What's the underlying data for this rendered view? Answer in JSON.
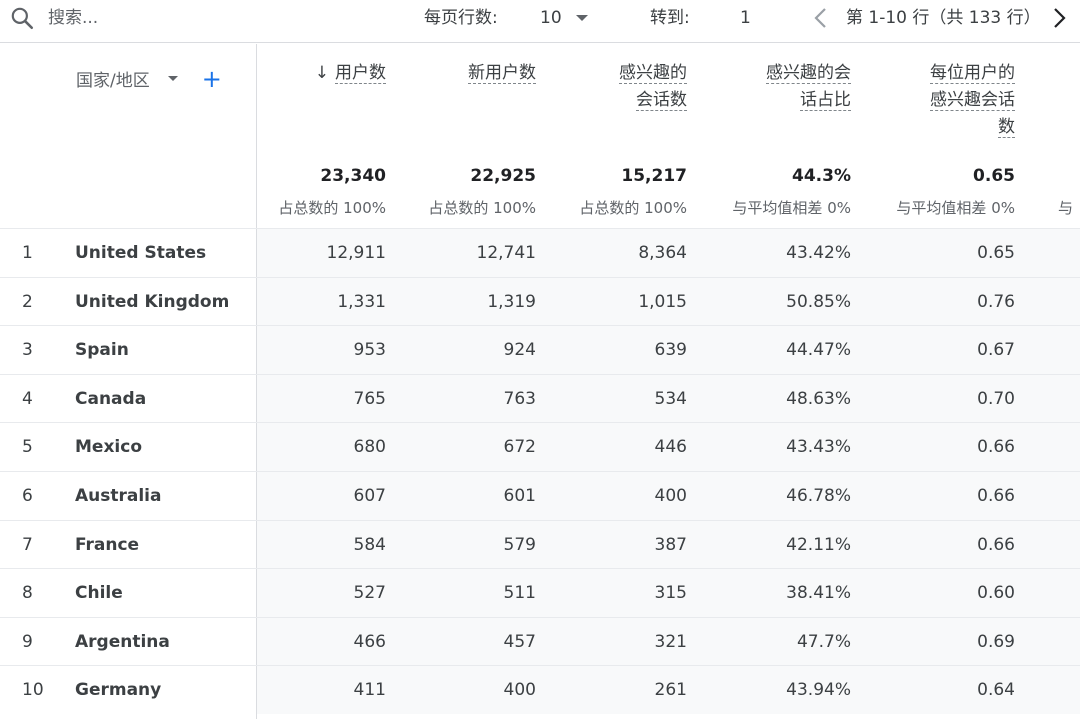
{
  "toolbar": {
    "search_placeholder": "搜索...",
    "rows_per_page_label": "每页行数:",
    "rows_per_page_value": "10",
    "goto_label": "转到:",
    "goto_value": "1",
    "range_text": "第 1-10 行（共 133 行）"
  },
  "table": {
    "dimension_header": "国家/地区",
    "columns": [
      {
        "label_lines": [
          "用户数"
        ],
        "sorted": true,
        "total": "23,340",
        "sub": "占总数的 100%"
      },
      {
        "label_lines": [
          "新用户数"
        ],
        "total": "22,925",
        "sub": "占总数的 100%"
      },
      {
        "label_lines": [
          "感兴趣的",
          "会话数"
        ],
        "total": "15,217",
        "sub": "占总数的 100%"
      },
      {
        "label_lines": [
          "感兴趣的会",
          "话占比"
        ],
        "total": "44.3%",
        "sub": "与平均值相差 0%"
      },
      {
        "label_lines": [
          "每位用户的",
          "感兴趣会话",
          "数"
        ],
        "total": "0.65",
        "sub": "与平均值相差 0%"
      }
    ],
    "next_column_sub_cutoff": "与",
    "rows": [
      {
        "idx": "1",
        "country": "United States",
        "v": [
          "12,911",
          "12,741",
          "8,364",
          "43.42%",
          "0.65"
        ]
      },
      {
        "idx": "2",
        "country": "United Kingdom",
        "v": [
          "1,331",
          "1,319",
          "1,015",
          "50.85%",
          "0.76"
        ]
      },
      {
        "idx": "3",
        "country": "Spain",
        "v": [
          "953",
          "924",
          "639",
          "44.47%",
          "0.67"
        ]
      },
      {
        "idx": "4",
        "country": "Canada",
        "v": [
          "765",
          "763",
          "534",
          "48.63%",
          "0.70"
        ]
      },
      {
        "idx": "5",
        "country": "Mexico",
        "v": [
          "680",
          "672",
          "446",
          "43.43%",
          "0.66"
        ]
      },
      {
        "idx": "6",
        "country": "Australia",
        "v": [
          "607",
          "601",
          "400",
          "46.78%",
          "0.66"
        ]
      },
      {
        "idx": "7",
        "country": "France",
        "v": [
          "584",
          "579",
          "387",
          "42.11%",
          "0.66"
        ]
      },
      {
        "idx": "8",
        "country": "Chile",
        "v": [
          "527",
          "511",
          "315",
          "38.41%",
          "0.60"
        ]
      },
      {
        "idx": "9",
        "country": "Argentina",
        "v": [
          "466",
          "457",
          "321",
          "47.7%",
          "0.69"
        ]
      },
      {
        "idx": "10",
        "country": "Germany",
        "v": [
          "411",
          "400",
          "261",
          "43.94%",
          "0.64"
        ]
      }
    ]
  }
}
